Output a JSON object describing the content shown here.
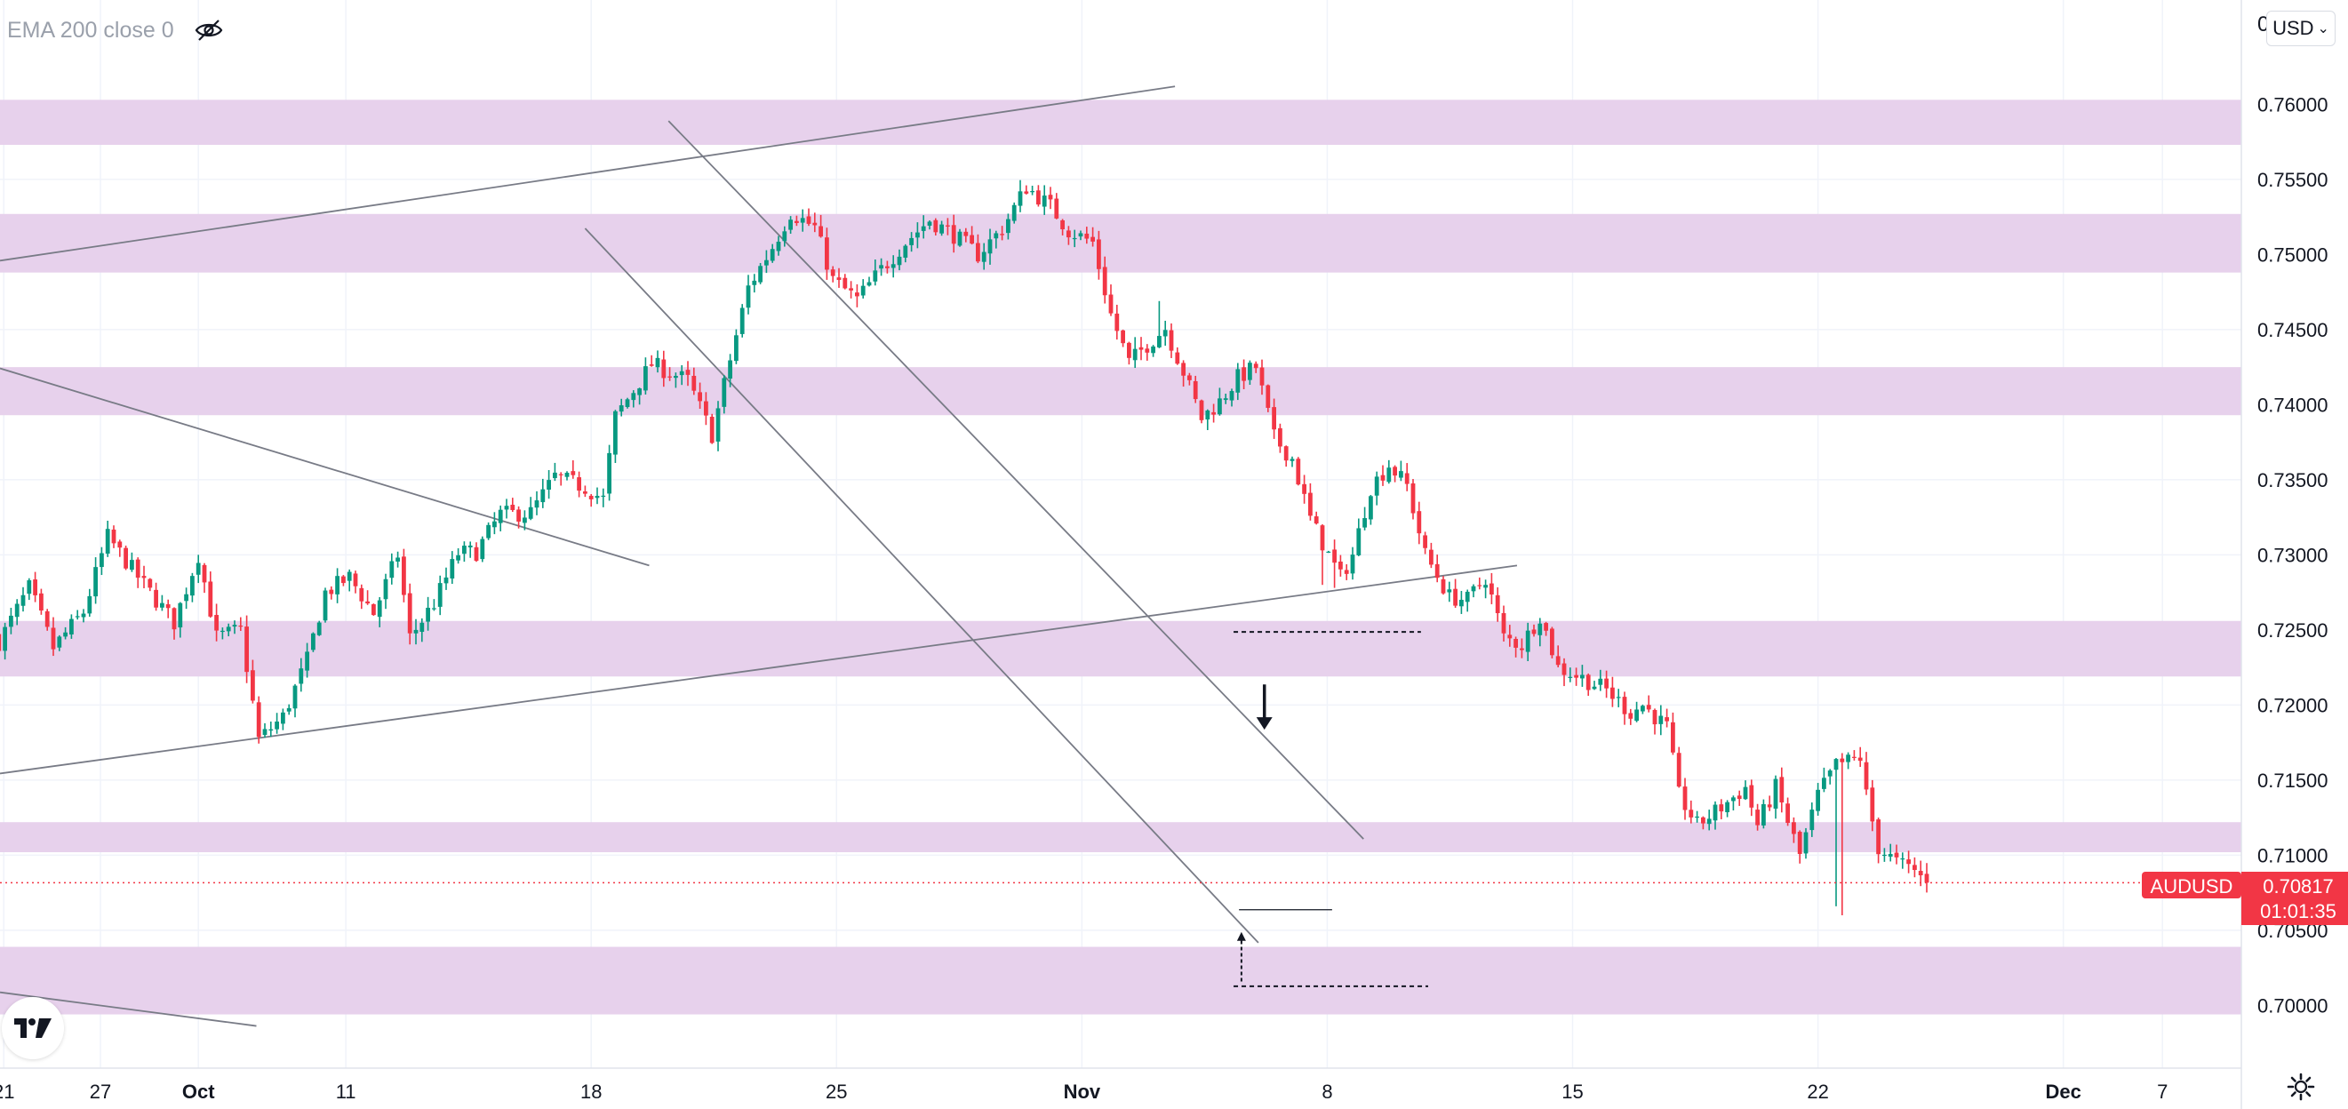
{
  "indicator": {
    "label": "EMA 200 close 0",
    "icon": "eye-crossed-icon"
  },
  "currency_selector": {
    "label": "USD",
    "icon": "chevron-down-icon"
  },
  "price_axis_glyph": "0",
  "symbol_badge": {
    "symbol": "AUDUSD",
    "price": "0.70817",
    "countdown": "01:01:35",
    "color": "#f23645"
  },
  "colors": {
    "up": "#089981",
    "down": "#f23645",
    "zone": "#e7d1ec",
    "trendline": "#787b86"
  },
  "chart_data": {
    "type": "candlestick",
    "symbol": "AUDUSD",
    "ylim": [
      0.6976,
      0.7655
    ],
    "price_ticks": [
      "0.76000",
      "0.75500",
      "0.75000",
      "0.74500",
      "0.74000",
      "0.73500",
      "0.73000",
      "0.72500",
      "0.72000",
      "0.71500",
      "0.71000",
      "0.70500",
      "0.70000"
    ],
    "time_ticks": [
      {
        "label": "21",
        "t": -3.2
      },
      {
        "label": "27",
        "t": 12.8
      },
      {
        "label": "Oct",
        "t": 29.0
      },
      {
        "label": "11",
        "t": 53.4
      },
      {
        "label": "18",
        "t": 94.0
      },
      {
        "label": "25",
        "t": 134.6
      },
      {
        "label": "Nov",
        "t": 175.2
      },
      {
        "label": "8",
        "t": 215.8
      },
      {
        "label": "15",
        "t": 256.4
      },
      {
        "label": "22",
        "t": 297.0
      },
      {
        "label": "Dec",
        "t": 337.6
      },
      {
        "label": "7",
        "t": 354.0
      }
    ],
    "zones": [
      [
        0.7573,
        0.7603
      ],
      [
        0.7488,
        0.7527
      ],
      [
        0.7393,
        0.7425
      ],
      [
        0.7219,
        0.7256
      ],
      [
        0.7102,
        0.7122
      ],
      [
        0.6994,
        0.7039
      ]
    ],
    "trendlines": [
      {
        "t1": -5,
        "p1": 0.74959,
        "t2": 190.6,
        "p2": 0.76119
      },
      {
        "t1": -5,
        "p1": 0.74242,
        "t2": 103.6,
        "p2": 0.72929
      },
      {
        "t1": -5,
        "p1": 0.71544,
        "t2": 247.2,
        "p2": 0.72929
      },
      {
        "t1": -5,
        "p1": 0.70087,
        "t2": 38.6,
        "p2": 0.69863
      },
      {
        "t1": 106.8,
        "p1": 0.75889,
        "t2": 221.8,
        "p2": 0.71108
      },
      {
        "t1": 93.0,
        "p1": 0.75174,
        "t2": 204.4,
        "p2": 0.70417
      }
    ],
    "dashed_levels": [
      {
        "t1": 200.3,
        "t2": 231.3,
        "p": 0.72487
      },
      {
        "t1": 200.3,
        "t2": 232.5,
        "p": 0.70127
      }
    ],
    "solid_levels": [
      {
        "t1": 201.2,
        "t2": 216.6,
        "p": 0.70637
      }
    ],
    "current_price": 0.70817,
    "arrows": [
      {
        "kind": "down",
        "t": 205.4,
        "p_tail": 0.72137,
        "p_head": 0.71836
      },
      {
        "kind": "up",
        "t": 201.6,
        "p_tail": 0.70159,
        "p_head": 0.70489
      }
    ],
    "path": [
      [
        -4,
        0.7242
      ],
      [
        1,
        0.7278
      ],
      [
        5,
        0.7238
      ],
      [
        10,
        0.7262
      ],
      [
        14,
        0.7312
      ],
      [
        20,
        0.728
      ],
      [
        25,
        0.7255
      ],
      [
        29,
        0.73
      ],
      [
        32,
        0.7245
      ],
      [
        36,
        0.725
      ],
      [
        39,
        0.7177
      ],
      [
        43,
        0.7192
      ],
      [
        47,
        0.723
      ],
      [
        50,
        0.7275
      ],
      [
        54,
        0.7285
      ],
      [
        58,
        0.7261
      ],
      [
        62,
        0.73
      ],
      [
        64,
        0.7245
      ],
      [
        68,
        0.7268
      ],
      [
        72,
        0.7301
      ],
      [
        75,
        0.7302
      ],
      [
        79,
        0.7327
      ],
      [
        84,
        0.7328
      ],
      [
        88,
        0.7352
      ],
      [
        93,
        0.7345
      ],
      [
        96,
        0.7337
      ],
      [
        98,
        0.7392
      ],
      [
        104,
        0.7427
      ],
      [
        110,
        0.7416
      ],
      [
        114,
        0.738
      ],
      [
        117,
        0.743
      ],
      [
        120,
        0.7478
      ],
      [
        124,
        0.7505
      ],
      [
        127,
        0.7528
      ],
      [
        131,
        0.7518
      ],
      [
        134,
        0.7483
      ],
      [
        138,
        0.747
      ],
      [
        142,
        0.749
      ],
      [
        146,
        0.7508
      ],
      [
        150,
        0.7523
      ],
      [
        154,
        0.7513
      ],
      [
        158,
        0.75
      ],
      [
        162,
        0.7517
      ],
      [
        166,
        0.7545
      ],
      [
        170,
        0.7532
      ],
      [
        173,
        0.7516
      ],
      [
        177,
        0.7508
      ],
      [
        180,
        0.746
      ],
      [
        183,
        0.7428
      ],
      [
        186,
        0.744
      ],
      [
        189,
        0.7451
      ],
      [
        192,
        0.7422
      ],
      [
        195,
        0.7391
      ],
      [
        198,
        0.7402
      ],
      [
        201,
        0.7418
      ],
      [
        204,
        0.7425
      ],
      [
        207,
        0.7378
      ],
      [
        210,
        0.7364
      ],
      [
        213,
        0.7324
      ],
      [
        216,
        0.73
      ],
      [
        218,
        0.7285
      ],
      [
        220,
        0.73
      ],
      [
        223,
        0.7345
      ],
      [
        226,
        0.736
      ],
      [
        229,
        0.7346
      ],
      [
        232,
        0.73
      ],
      [
        236,
        0.7272
      ],
      [
        239,
        0.727
      ],
      [
        242,
        0.7285
      ],
      [
        245,
        0.7245
      ],
      [
        248,
        0.724
      ],
      [
        251,
        0.726
      ],
      [
        254,
        0.7225
      ],
      [
        258,
        0.7218
      ],
      [
        262,
        0.721
      ],
      [
        266,
        0.7195
      ],
      [
        268,
        0.72
      ],
      [
        272,
        0.7185
      ],
      [
        274,
        0.714
      ],
      [
        277,
        0.712
      ],
      [
        281,
        0.7132
      ],
      [
        285,
        0.7145
      ],
      [
        287,
        0.712
      ],
      [
        290,
        0.7145
      ],
      [
        294,
        0.71
      ],
      [
        297,
        0.714
      ],
      [
        300,
        0.716
      ],
      [
        304,
        0.7165
      ],
      [
        305,
        0.714
      ],
      [
        307,
        0.7105
      ],
      [
        310,
        0.7095
      ],
      [
        313,
        0.709
      ],
      [
        315,
        0.7081
      ]
    ],
    "overrides": [
      {
        "t": 184,
        "h": 0.7445
      },
      {
        "t": 188,
        "h": 0.7469
      },
      {
        "t": 215,
        "l": 0.728
      },
      {
        "t": 217,
        "l": 0.7278
      },
      {
        "t": 300,
        "l": 0.7066
      },
      {
        "t": 301,
        "h": 0.7168,
        "l": 0.706
      },
      {
        "t": 303,
        "h": 0.717
      },
      {
        "t": 304,
        "h": 0.7172
      },
      {
        "t": 312,
        "h": 0.7103
      }
    ]
  }
}
